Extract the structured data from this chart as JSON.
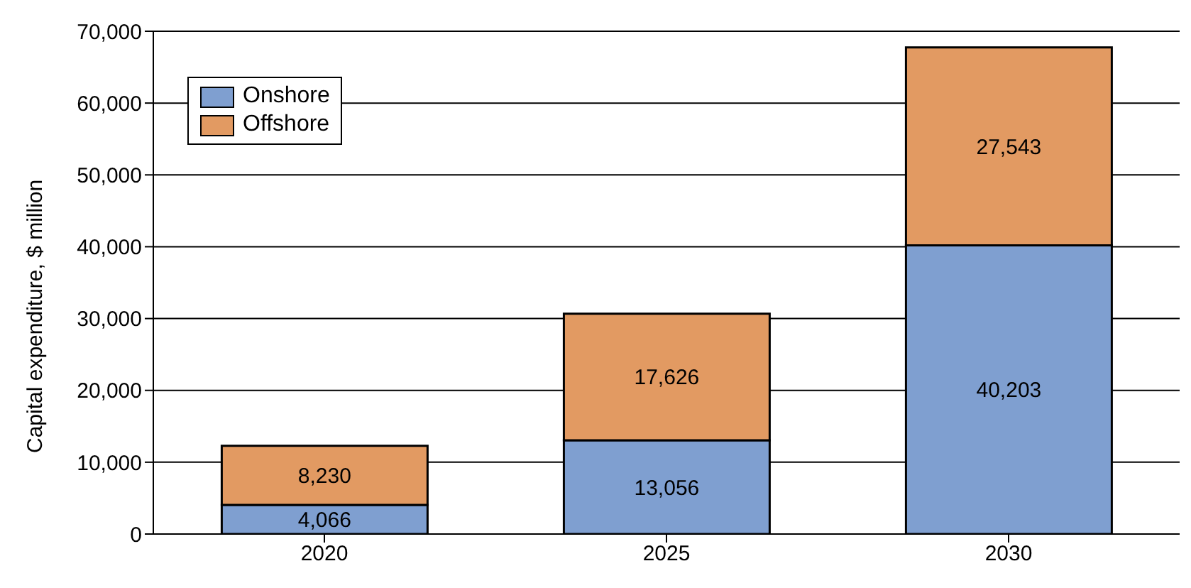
{
  "chart_data": {
    "type": "bar",
    "stacked": true,
    "ylabel": "Capital expenditure, $ million",
    "categories": [
      "2020",
      "2025",
      "2030"
    ],
    "series": [
      {
        "name": "Onshore",
        "color": "#7f9fd0",
        "values": [
          4066,
          13056,
          40203
        ],
        "value_labels": [
          "4,066",
          "13,056",
          "40,203"
        ]
      },
      {
        "name": "Offshore",
        "color": "#e29a62",
        "values": [
          8230,
          17626,
          27543
        ],
        "value_labels": [
          "8,230",
          "17,626",
          "27,543"
        ]
      }
    ],
    "ylim": [
      0,
      70000
    ],
    "yticks": [
      0,
      {
        "value": 10000,
        "label": "10,000"
      },
      {
        "value": 20000,
        "label": "20,000"
      },
      {
        "value": 30000,
        "label": "30,000"
      },
      {
        "value": 40000,
        "label": "40,000"
      },
      {
        "value": 50000,
        "label": "50,000"
      },
      {
        "value": 60000,
        "label": "60,000"
      },
      {
        "value": 70000,
        "label": "70,000"
      }
    ],
    "grid": "y",
    "legend": "top left",
    "data_labels": true
  }
}
